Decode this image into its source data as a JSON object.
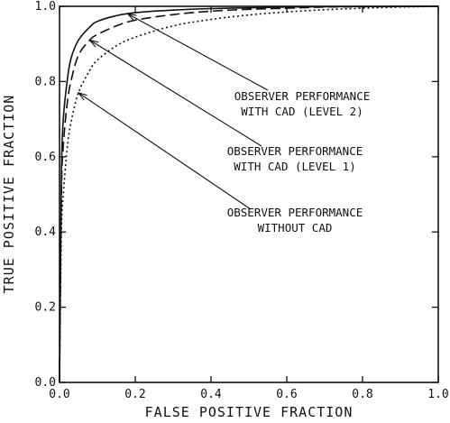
{
  "chart_data": {
    "type": "line",
    "title": "",
    "xlabel": "FALSE POSITIVE FRACTION",
    "ylabel": "TRUE POSITIVE FRACTION",
    "xlim": [
      0,
      1
    ],
    "ylim": [
      0,
      1
    ],
    "grid": false,
    "xticks": [
      "0.0",
      "0.2",
      "0.4",
      "0.6",
      "0.8",
      "1.0"
    ],
    "yticks": [
      "0.0",
      "0.2",
      "0.4",
      "0.6",
      "0.8",
      "1.0"
    ],
    "series": [
      {
        "name": "OBSERVER PERFORMANCE WITH CAD (LEVEL 2)",
        "style": "solid",
        "x": [
          0.0,
          0.005,
          0.01,
          0.02,
          0.03,
          0.05,
          0.08,
          0.1,
          0.15,
          0.2,
          0.3,
          0.4,
          0.5,
          0.6,
          0.7,
          0.8,
          0.9,
          1.0
        ],
        "y": [
          0.0,
          0.55,
          0.7,
          0.8,
          0.86,
          0.91,
          0.945,
          0.96,
          0.975,
          0.983,
          0.99,
          0.994,
          0.996,
          0.998,
          0.999,
          0.9995,
          0.9998,
          1.0
        ]
      },
      {
        "name": "OBSERVER PERFORMANCE WITH CAD (LEVEL 1)",
        "style": "dashed",
        "x": [
          0.0,
          0.005,
          0.01,
          0.02,
          0.03,
          0.05,
          0.08,
          0.1,
          0.15,
          0.2,
          0.3,
          0.4,
          0.5,
          0.6,
          0.7,
          0.8,
          0.9,
          1.0
        ],
        "y": [
          0.0,
          0.5,
          0.63,
          0.74,
          0.8,
          0.87,
          0.91,
          0.925,
          0.948,
          0.963,
          0.978,
          0.987,
          0.992,
          0.995,
          0.998,
          0.999,
          0.9995,
          1.0
        ]
      },
      {
        "name": "OBSERVER PERFORMANCE WITHOUT CAD",
        "style": "dotted",
        "x": [
          0.0,
          0.005,
          0.01,
          0.02,
          0.03,
          0.05,
          0.08,
          0.1,
          0.15,
          0.2,
          0.3,
          0.4,
          0.5,
          0.6,
          0.7,
          0.8,
          0.9,
          1.0
        ],
        "y": [
          0.0,
          0.4,
          0.5,
          0.62,
          0.69,
          0.77,
          0.83,
          0.857,
          0.895,
          0.918,
          0.948,
          0.965,
          0.977,
          0.985,
          0.991,
          0.995,
          0.998,
          1.0
        ]
      }
    ],
    "annotations": [
      {
        "lines": [
          "OBSERVER PERFORMANCE",
          "WITH CAD (LEVEL 2)"
        ],
        "target": {
          "x": 0.18,
          "y": 0.98
        }
      },
      {
        "lines": [
          "OBSERVER PERFORMANCE",
          "WITH CAD (LEVEL 1)"
        ],
        "target": {
          "x": 0.08,
          "y": 0.91
        }
      },
      {
        "lines": [
          "OBSERVER PERFORMANCE",
          "WITHOUT CAD"
        ],
        "target": {
          "x": 0.05,
          "y": 0.77
        }
      }
    ]
  }
}
